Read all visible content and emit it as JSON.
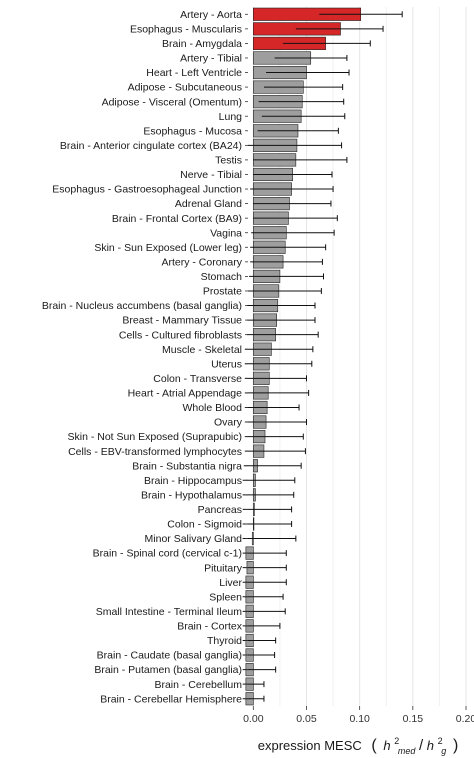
{
  "chart_data": {
    "type": "bar",
    "orientation": "horizontal",
    "xlabel_text": "expression  MESC",
    "xlabel_math": {
      "open_paren": "(",
      "h": "h",
      "sup": "2",
      "sub_num": "med",
      "slash": "/",
      "sub_den": "g",
      "close_paren": ")"
    },
    "xlim": [
      -0.005,
      0.2
    ],
    "xticks": [
      0.0,
      0.05,
      0.1,
      0.15,
      0.2
    ],
    "xtick_labels": [
      "0.00",
      "0.05",
      "0.10",
      "0.15",
      "0.20"
    ],
    "grid": true,
    "legend": "none",
    "colors": {
      "highlight": "#d62728",
      "default": "#9e9e9e",
      "bar_edge": "#222222",
      "grid": "#e6e6e6",
      "error_bar": "#111111"
    },
    "categories": [
      "Artery - Aorta",
      "Esophagus - Muscularis",
      "Brain - Amygdala",
      "Artery - Tibial",
      "Heart - Left Ventricle",
      "Adipose - Subcutaneous",
      "Adipose - Visceral (Omentum)",
      "Lung",
      "Esophagus - Mucosa",
      "Brain - Anterior cingulate cortex (BA24)",
      "Testis",
      "Nerve - Tibial",
      "Esophagus - Gastroesophageal Junction",
      "Adrenal Gland",
      "Brain - Frontal Cortex (BA9)",
      "Vagina",
      "Skin - Sun Exposed (Lower leg)",
      "Artery - Coronary",
      "Stomach",
      "Prostate",
      "Brain - Nucleus accumbens (basal ganglia)",
      "Breast - Mammary Tissue",
      "Cells - Cultured fibroblasts",
      "Muscle - Skeletal",
      "Uterus",
      "Colon - Transverse",
      "Heart - Atrial Appendage",
      "Whole Blood",
      "Ovary",
      "Skin - Not Sun Exposed (Suprapubic)",
      "Cells - EBV-transformed lymphocytes",
      "Brain - Substantia nigra",
      "Brain - Hippocampus",
      "Brain - Hypothalamus",
      "Pancreas",
      "Colon - Sigmoid",
      "Minor Salivary Gland",
      "Brain - Spinal cord (cervical c-1)",
      "Pituitary",
      "Liver",
      "Spleen",
      "Small Intestine - Terminal Ileum",
      "Brain - Cortex",
      "Thyroid",
      "Brain - Caudate (basal ganglia)",
      "Brain - Putamen (basal ganglia)",
      "Brain - Cerebellum",
      "Brain - Cerebellar Hemisphere"
    ],
    "values": [
      0.101,
      0.082,
      0.068,
      0.054,
      0.05,
      0.047,
      0.046,
      0.045,
      0.042,
      0.041,
      0.04,
      0.037,
      0.036,
      0.034,
      0.033,
      0.031,
      0.03,
      0.028,
      0.025,
      0.024,
      0.023,
      0.022,
      0.021,
      0.017,
      0.015,
      0.015,
      0.014,
      0.013,
      0.012,
      0.011,
      0.01,
      0.004,
      0.002,
      0.002,
      0.001,
      0.0,
      -0.001,
      -0.007,
      -0.006,
      -0.007,
      -0.007,
      -0.007,
      -0.007,
      -0.007,
      -0.007,
      -0.007,
      -0.007,
      -0.007
    ],
    "error_low": [
      0.062,
      0.04,
      0.028,
      0.02,
      0.012,
      0.01,
      0.005,
      0.008,
      0.004,
      -0.005,
      0.0,
      0.0,
      -0.003,
      0.0,
      0.0,
      -0.002,
      -0.003,
      -0.003,
      -0.004,
      -0.005,
      -0.006,
      -0.006,
      -0.006,
      -0.008,
      -0.008,
      -0.008,
      -0.008,
      -0.008,
      -0.008,
      -0.008,
      -0.008,
      -0.009,
      -0.01,
      -0.01,
      -0.01,
      -0.01,
      -0.01,
      -0.01,
      -0.01,
      -0.01,
      -0.01,
      -0.01,
      -0.01,
      -0.01,
      -0.01,
      -0.01,
      -0.01,
      -0.01
    ],
    "error_high": [
      0.14,
      0.122,
      0.11,
      0.088,
      0.09,
      0.084,
      0.085,
      0.086,
      0.08,
      0.083,
      0.088,
      0.074,
      0.075,
      0.073,
      0.079,
      0.076,
      0.068,
      0.065,
      0.066,
      0.064,
      0.058,
      0.058,
      0.061,
      0.056,
      0.055,
      0.05,
      0.052,
      0.043,
      0.05,
      0.047,
      0.049,
      0.045,
      0.039,
      0.038,
      0.036,
      0.036,
      0.04,
      0.031,
      0.031,
      0.031,
      0.028,
      0.03,
      0.025,
      0.021,
      0.02,
      0.021,
      0.01,
      0.01
    ],
    "highlight_count": 3
  }
}
